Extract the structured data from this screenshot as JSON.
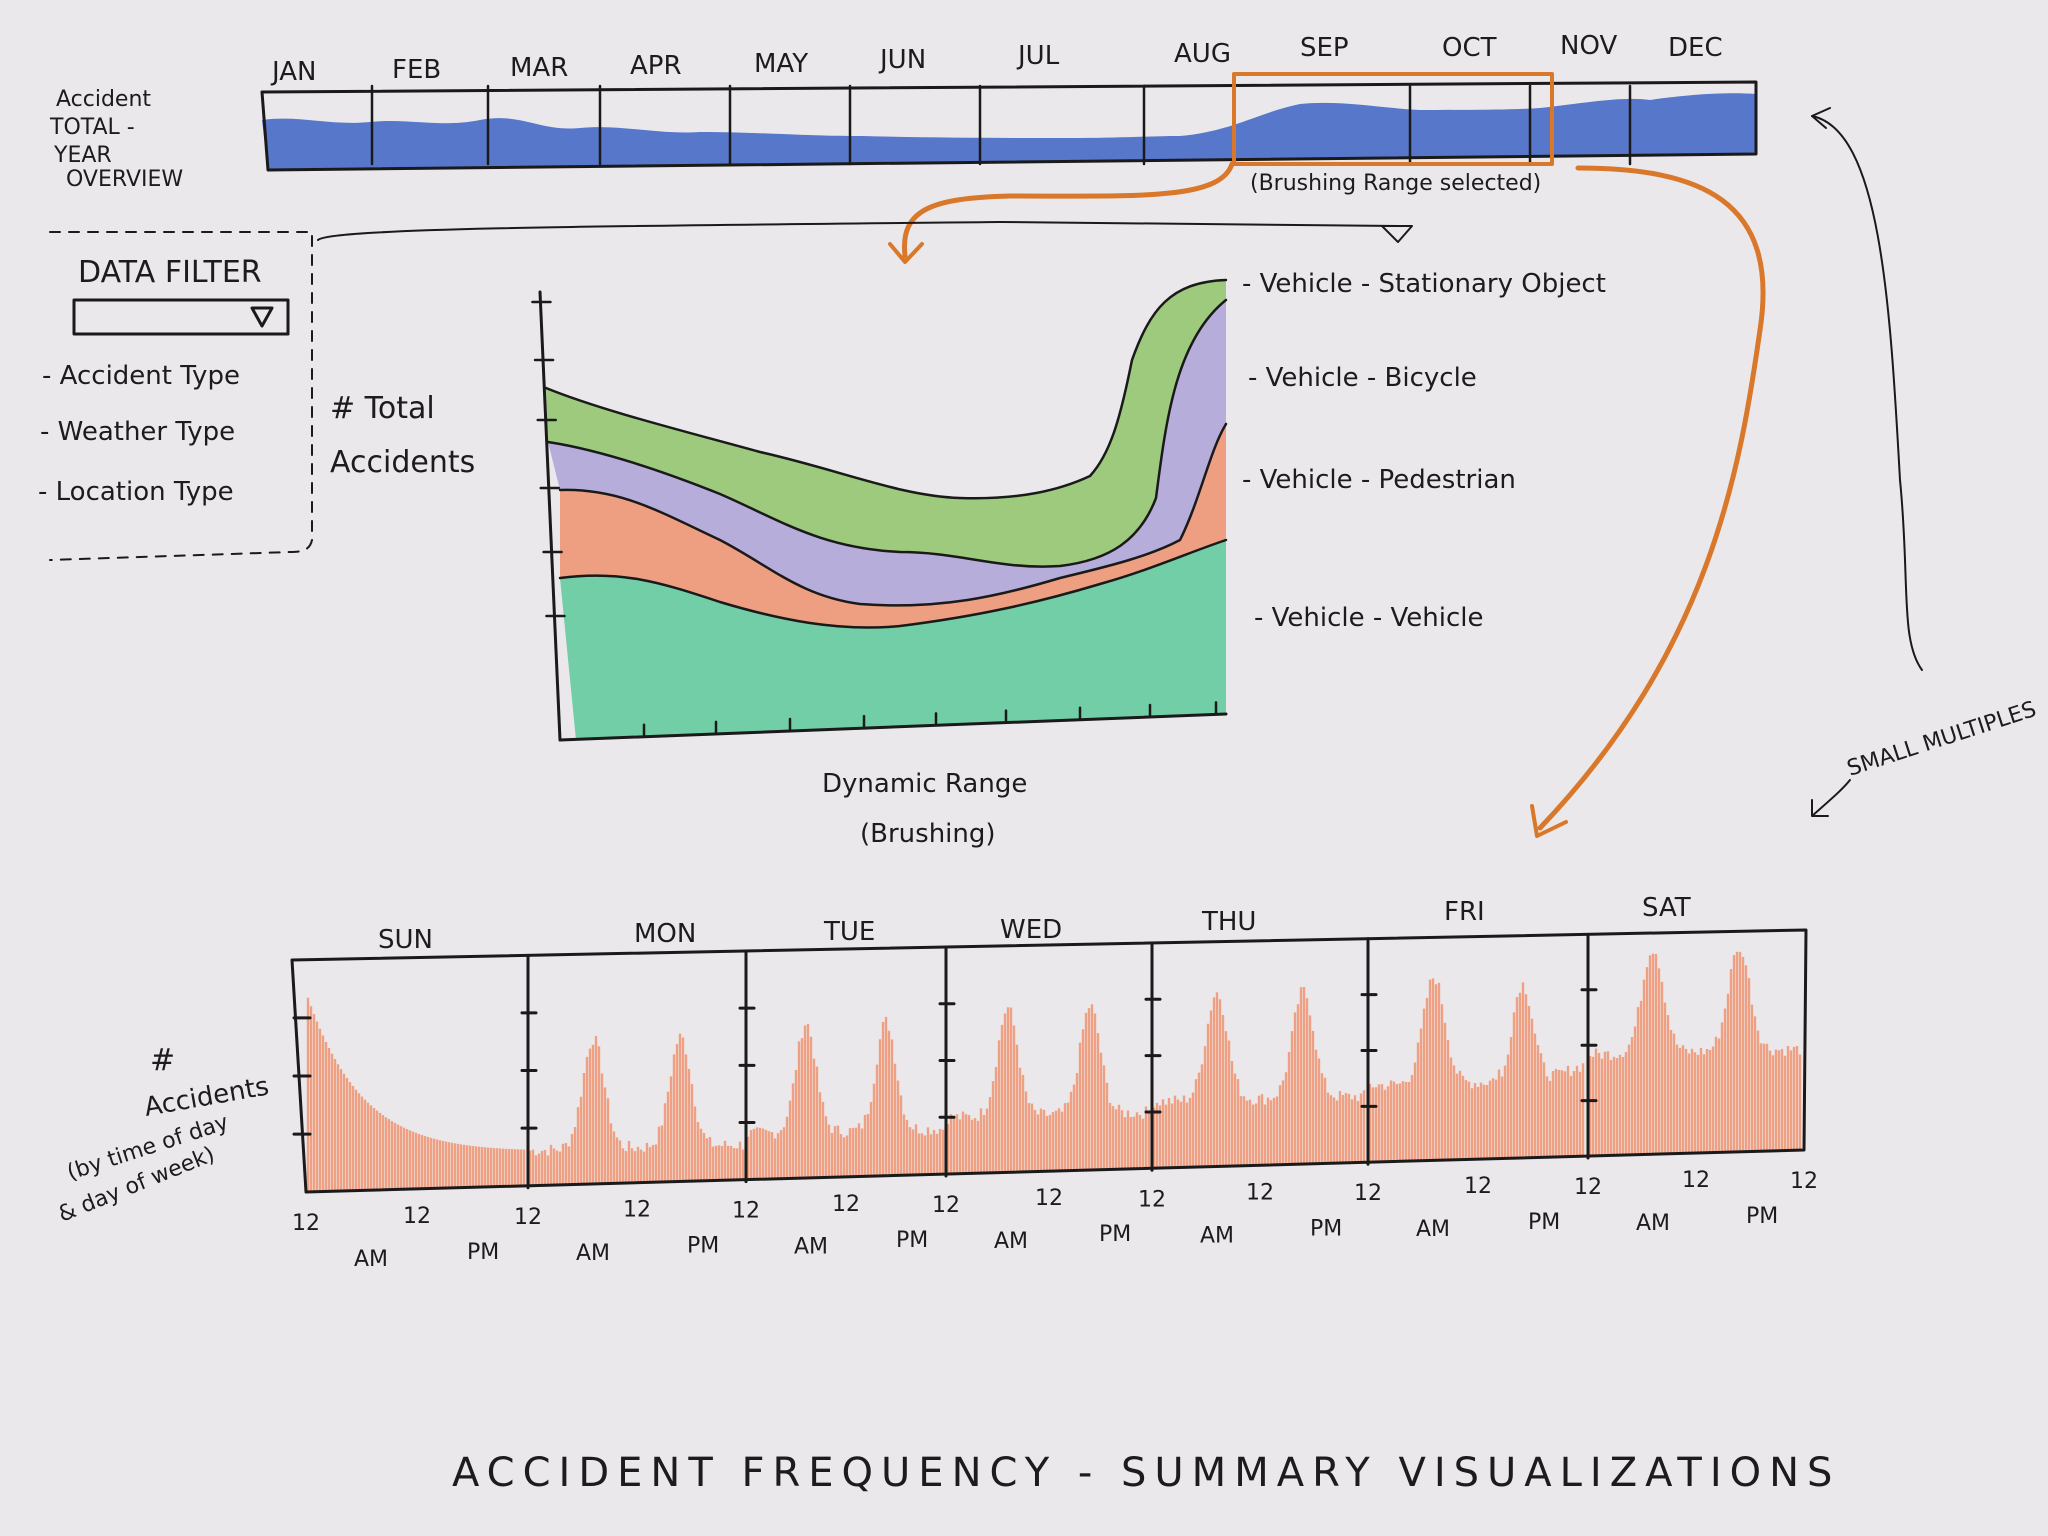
{
  "title": "ACCIDENT FREQUENCY - SUMMARY VISUALIZATIONS",
  "overview": {
    "label_lines": [
      "Accident",
      "TOTAL -",
      "YEAR",
      "OVERVIEW"
    ],
    "months": [
      "JAN",
      "FEB",
      "MAR",
      "APR",
      "MAY",
      "JUN",
      "JUL",
      "AUG",
      "SEP",
      "OCT",
      "NOV",
      "DEC"
    ],
    "brush_note": "(Brushing Range selected)",
    "brush_months": [
      "SEP",
      "OCT",
      "NOV"
    ],
    "colors": {
      "area": "#3d63c4",
      "brush": "#d9782a"
    }
  },
  "filter": {
    "title": "DATA FILTER",
    "dropdown_icon": "triangle-down-icon",
    "items": [
      "- Accident Type",
      "- Weather Type",
      "- Location Type"
    ]
  },
  "stream": {
    "y_label_lines": [
      "# Total",
      "Accidents"
    ],
    "x_label_lines": [
      "Dynamic Range",
      "(Brushing)"
    ],
    "layers": [
      {
        "label": "- Vehicle - Stationary Object",
        "color": "#8fc46a"
      },
      {
        "label": "- Vehicle - Bicycle",
        "color": "#a59ad6"
      },
      {
        "label": "- Vehicle - Pedestrian",
        "color": "#ef8c68"
      },
      {
        "label": "- Vehicle - Vehicle",
        "color": "#5cc99a"
      }
    ]
  },
  "week": {
    "y_label_lines": [
      "#",
      "Accidents",
      "(by time of day",
      "& day of week)"
    ],
    "days": [
      "SUN",
      "MON",
      "TUE",
      "WED",
      "THU",
      "FRI",
      "SAT"
    ],
    "tick_hour": "12",
    "am": "AM",
    "pm": "PM",
    "bar_color": "#f0875f"
  },
  "small_multiples": "SMALL MULTIPLES"
}
